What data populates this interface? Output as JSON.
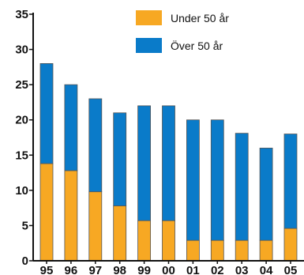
{
  "chart_data": {
    "type": "bar",
    "stacked": true,
    "title": "",
    "xlabel": "",
    "ylabel": "",
    "categories": [
      "95",
      "96",
      "97",
      "98",
      "99",
      "00",
      "01",
      "02",
      "03",
      "04",
      "05"
    ],
    "series": [
      {
        "name": "Under 50 år",
        "color": "#F7A823",
        "values": [
          13.8,
          12.8,
          9.8,
          7.8,
          5.7,
          5.7,
          2.9,
          2.9,
          2.9,
          2.9,
          4.6
        ]
      },
      {
        "name": "Över 50 år",
        "color": "#0A7BC9",
        "values": [
          14.2,
          12.2,
          13.2,
          13.2,
          16.3,
          16.3,
          17.1,
          17.1,
          15.2,
          13.1,
          13.4
        ]
      }
    ],
    "totals": [
      28,
      25,
      23,
      21,
      22,
      22,
      20,
      20,
      18.1,
      16,
      18
    ],
    "ylim": [
      0,
      35
    ],
    "yticks": [
      0,
      5,
      10,
      15,
      20,
      25,
      30,
      35
    ],
    "ytick_labels": [
      "0",
      "5",
      "10",
      "15",
      "20",
      "25",
      "30",
      "35"
    ],
    "grid": false,
    "legend_position": "top-right",
    "bar_outline_color": "#555555"
  }
}
